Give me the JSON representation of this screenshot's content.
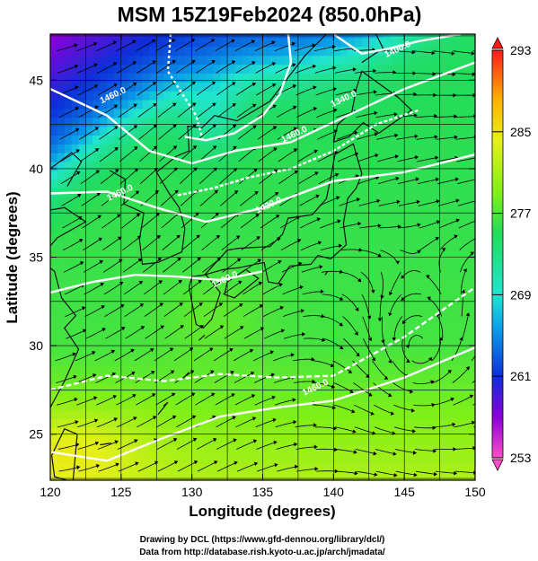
{
  "chart_data": {
    "type": "heatmap",
    "title": "MSM 15Z19Feb2024 (850.0hPa)",
    "xlabel": "Longitude (degrees)",
    "ylabel": "Latitude  (degrees)",
    "xlim": [
      120,
      150
    ],
    "ylim": [
      22.4,
      47.6
    ],
    "xticks": [
      "120",
      "125",
      "130",
      "135",
      "140",
      "145",
      "150"
    ],
    "yticks": [
      "25",
      "30",
      "35",
      "40",
      "45"
    ],
    "grid": true,
    "colorbar": {
      "min": 253,
      "max": 293,
      "ticks": [
        "253",
        "261",
        "269",
        "277",
        "285",
        "293"
      ],
      "colors": [
        "#ff4fc8",
        "#8a00d8",
        "#0c2fd8",
        "#0aa0e8",
        "#20e6d0",
        "#22dc5a",
        "#7ef018",
        "#e6f018",
        "#ffb000",
        "#ff5a14",
        "#ff1a1a"
      ]
    },
    "contours": [
      {
        "label": "1460.0",
        "lon": 124.5,
        "lat": 44.0
      },
      {
        "label": "1460.0",
        "lon": 125.0,
        "lat": 38.5
      },
      {
        "label": "1460.0",
        "lon": 137.3,
        "lat": 41.8
      },
      {
        "label": "1400.0",
        "lon": 144.6,
        "lat": 46.6
      },
      {
        "label": "1340.0",
        "lon": 140.8,
        "lat": 43.8
      },
      {
        "label": "1420.0",
        "lon": 135.5,
        "lat": 37.8
      },
      {
        "label": "1500.0",
        "lon": 132.4,
        "lat": 33.6
      },
      {
        "label": "1460.0",
        "lon": 138.8,
        "lat": 27.5
      }
    ]
  },
  "credits": {
    "line1": "Drawing by DCL (https://www.gfd-dennou.org/library/dcl/)",
    "line2": "Data from http://database.rish.kyoto-u.ac.jp/arch/jmadata/"
  }
}
